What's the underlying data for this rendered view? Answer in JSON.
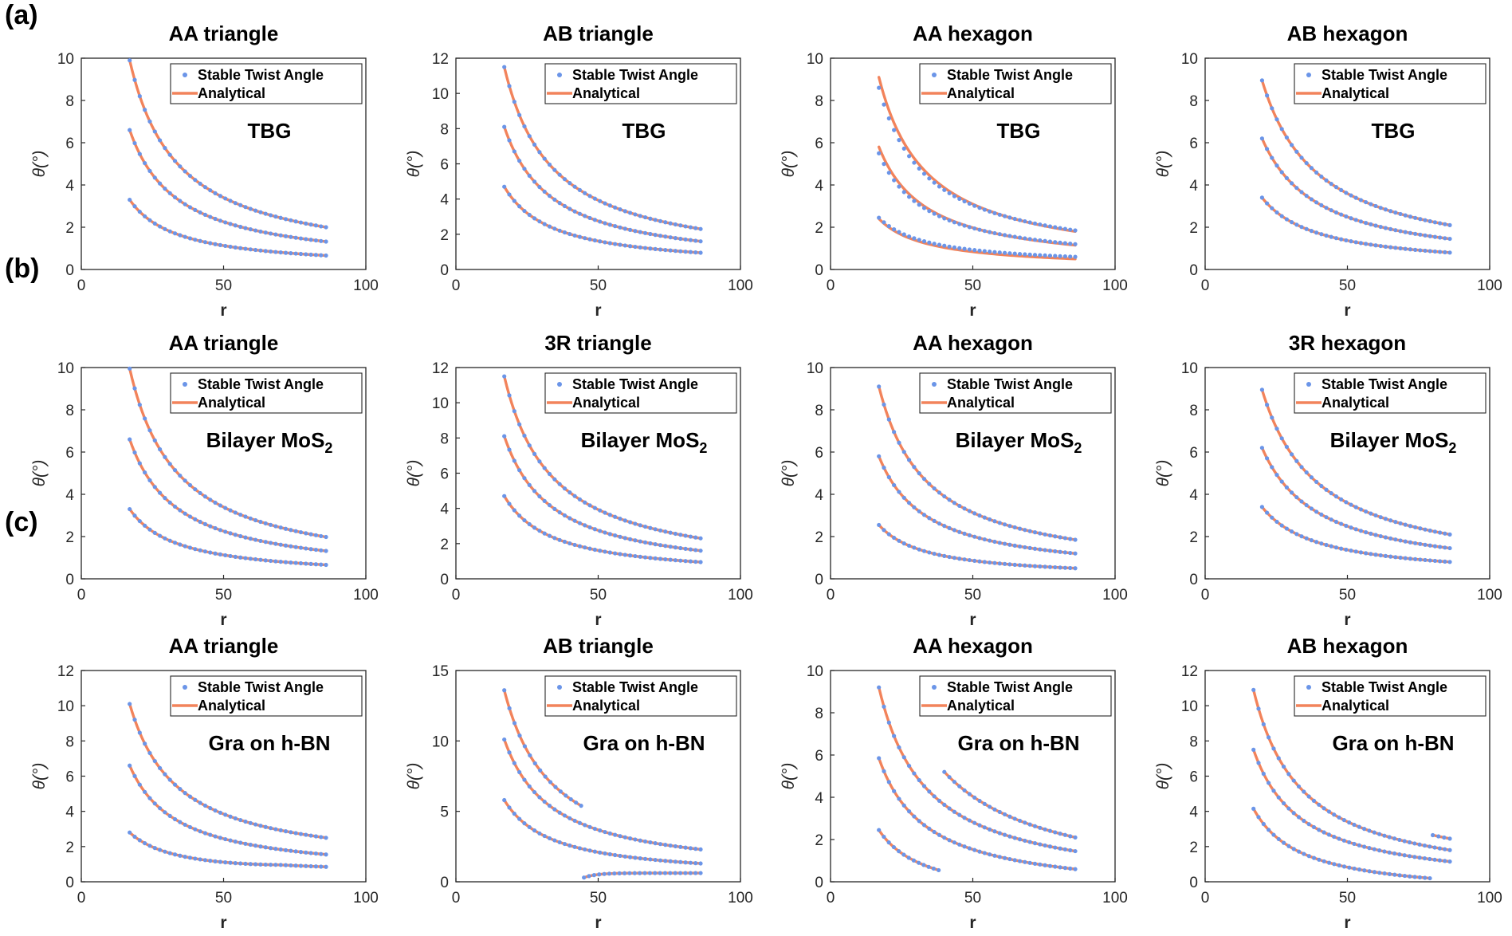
{
  "row_labels": [
    "(a)",
    "(b)",
    "(c)"
  ],
  "legend": {
    "points": "Stable Twist Angle",
    "line": "Analytical"
  },
  "colors": {
    "points": "#6b95e8",
    "line": "#f2835b",
    "axis": "#262626"
  },
  "chart_data": [
    {
      "row": "(a)",
      "title": "AA triangle",
      "annotation": "TBG",
      "type": "scatter",
      "xlabel": "r",
      "ylabel": "θ(°)",
      "xlim": [
        0,
        100
      ],
      "ylim": [
        0,
        10
      ],
      "xticks": [
        0,
        50,
        100
      ],
      "yticks": [
        0,
        2,
        4,
        6,
        8,
        10
      ],
      "series": [
        {
          "x_range": [
            17,
            86
          ],
          "y_range": [
            9.9,
            2.0
          ]
        },
        {
          "x_range": [
            17,
            86
          ],
          "y_range": [
            6.6,
            1.32
          ]
        },
        {
          "x_range": [
            17,
            86
          ],
          "y_range": [
            3.3,
            0.66
          ]
        }
      ]
    },
    {
      "row": "(a)",
      "title": "AB triangle",
      "annotation": "TBG",
      "type": "scatter",
      "xlabel": "r",
      "ylabel": "θ(°)",
      "xlim": [
        0,
        100
      ],
      "ylim": [
        0,
        12
      ],
      "xticks": [
        0,
        50,
        100
      ],
      "yticks": [
        0,
        2,
        4,
        6,
        8,
        10,
        12
      ],
      "series": [
        {
          "x_range": [
            17,
            86
          ],
          "y_range": [
            11.5,
            2.3
          ]
        },
        {
          "x_range": [
            17,
            86
          ],
          "y_range": [
            8.1,
            1.6
          ]
        },
        {
          "x_range": [
            17,
            86
          ],
          "y_range": [
            4.7,
            0.95
          ]
        }
      ]
    },
    {
      "row": "(a)",
      "title": "AA hexagon",
      "annotation": "TBG",
      "type": "scatter",
      "xlabel": "r",
      "ylabel": "θ(°)",
      "xlim": [
        0,
        100
      ],
      "ylim": [
        0,
        10
      ],
      "xticks": [
        0,
        50,
        100
      ],
      "yticks": [
        0,
        2,
        4,
        6,
        8,
        10
      ],
      "series": [
        {
          "x_range": [
            17,
            86
          ],
          "y_range": [
            8.6,
            1.85
          ],
          "line_y_range": [
            9.1,
            1.8
          ]
        },
        {
          "x_range": [
            17,
            86
          ],
          "y_range": [
            5.5,
            1.2
          ],
          "line_y_range": [
            5.8,
            1.15
          ]
        },
        {
          "x_range": [
            17,
            86
          ],
          "y_range": [
            2.45,
            0.6
          ],
          "line_y_range": [
            2.4,
            0.5
          ]
        }
      ]
    },
    {
      "row": "(a)",
      "title": "AB hexagon",
      "annotation": "TBG",
      "type": "scatter",
      "xlabel": "r",
      "ylabel": "θ(°)",
      "xlim": [
        0,
        100
      ],
      "ylim": [
        0,
        10
      ],
      "xticks": [
        0,
        50,
        100
      ],
      "yticks": [
        0,
        2,
        4,
        6,
        8,
        10
      ],
      "series": [
        {
          "x_range": [
            20,
            86
          ],
          "y_range": [
            8.95,
            2.1
          ]
        },
        {
          "x_range": [
            20,
            86
          ],
          "y_range": [
            6.2,
            1.45
          ]
        },
        {
          "x_range": [
            20,
            86
          ],
          "y_range": [
            3.4,
            0.8
          ]
        }
      ]
    },
    {
      "row": "(b)",
      "title": "AA triangle",
      "annotation": "Bilayer MoS",
      "annotation_sub": "2",
      "type": "scatter",
      "xlabel": "r",
      "ylabel": "θ(°)",
      "xlim": [
        0,
        100
      ],
      "ylim": [
        0,
        10
      ],
      "xticks": [
        0,
        50,
        100
      ],
      "yticks": [
        0,
        2,
        4,
        6,
        8,
        10
      ],
      "series": [
        {
          "x_range": [
            17,
            86
          ],
          "y_range": [
            9.95,
            1.98
          ]
        },
        {
          "x_range": [
            17,
            86
          ],
          "y_range": [
            6.6,
            1.32
          ]
        },
        {
          "x_range": [
            17,
            86
          ],
          "y_range": [
            3.3,
            0.66
          ]
        }
      ]
    },
    {
      "row": "(b)",
      "title": "3R triangle",
      "annotation": "Bilayer MoS",
      "annotation_sub": "2",
      "type": "scatter",
      "xlabel": "r",
      "ylabel": "θ(°)",
      "xlim": [
        0,
        100
      ],
      "ylim": [
        0,
        12
      ],
      "xticks": [
        0,
        50,
        100
      ],
      "yticks": [
        0,
        2,
        4,
        6,
        8,
        10,
        12
      ],
      "series": [
        {
          "x_range": [
            17,
            86
          ],
          "y_range": [
            11.5,
            2.3
          ]
        },
        {
          "x_range": [
            17,
            86
          ],
          "y_range": [
            8.1,
            1.6
          ]
        },
        {
          "x_range": [
            17,
            86
          ],
          "y_range": [
            4.7,
            0.95
          ]
        }
      ]
    },
    {
      "row": "(b)",
      "title": "AA hexagon",
      "annotation": "Bilayer MoS",
      "annotation_sub": "2",
      "type": "scatter",
      "xlabel": "r",
      "ylabel": "θ(°)",
      "xlim": [
        0,
        100
      ],
      "ylim": [
        0,
        10
      ],
      "xticks": [
        0,
        50,
        100
      ],
      "yticks": [
        0,
        2,
        4,
        6,
        8,
        10
      ],
      "series": [
        {
          "x_range": [
            17,
            86
          ],
          "y_range": [
            9.1,
            1.85
          ]
        },
        {
          "x_range": [
            17,
            86
          ],
          "y_range": [
            5.8,
            1.2
          ]
        },
        {
          "x_range": [
            17,
            86
          ],
          "y_range": [
            2.55,
            0.5
          ]
        }
      ]
    },
    {
      "row": "(b)",
      "title": "3R hexagon",
      "annotation": "Bilayer MoS",
      "annotation_sub": "2",
      "type": "scatter",
      "xlabel": "r",
      "ylabel": "θ(°)",
      "xlim": [
        0,
        100
      ],
      "ylim": [
        0,
        10
      ],
      "xticks": [
        0,
        50,
        100
      ],
      "yticks": [
        0,
        2,
        4,
        6,
        8,
        10
      ],
      "series": [
        {
          "x_range": [
            20,
            86
          ],
          "y_range": [
            8.95,
            2.1
          ]
        },
        {
          "x_range": [
            20,
            86
          ],
          "y_range": [
            6.2,
            1.45
          ]
        },
        {
          "x_range": [
            20,
            86
          ],
          "y_range": [
            3.4,
            0.8
          ]
        }
      ]
    },
    {
      "row": "(c)",
      "title": "AA triangle",
      "annotation": "Gra on h-BN",
      "type": "scatter",
      "xlabel": "r",
      "ylabel": "θ(°)",
      "xlim": [
        0,
        100
      ],
      "ylim": [
        0,
        12
      ],
      "xticks": [
        0,
        50,
        100
      ],
      "yticks": [
        0,
        2,
        4,
        6,
        8,
        10,
        12
      ],
      "series": [
        {
          "x_range": [
            17,
            86
          ],
          "y_range": [
            10.1,
            2.5
          ]
        },
        {
          "x_range": [
            17,
            86
          ],
          "y_range": [
            6.6,
            1.55
          ]
        },
        {
          "x_range": [
            17,
            86
          ],
          "y_range": [
            2.8,
            0.85
          ],
          "shape": "dip",
          "min": 0.85
        }
      ]
    },
    {
      "row": "(c)",
      "title": "AB triangle",
      "annotation": "Gra on h-BN",
      "type": "scatter",
      "xlabel": "r",
      "ylabel": "θ(°)",
      "xlim": [
        0,
        100
      ],
      "ylim": [
        0,
        15
      ],
      "xticks": [
        0,
        50,
        100
      ],
      "yticks": [
        0,
        5,
        10,
        15
      ],
      "series": [
        {
          "x_range": [
            17,
            44
          ],
          "y_range": [
            13.6,
            5.4
          ]
        },
        {
          "x_range": [
            17,
            86
          ],
          "y_range": [
            10.1,
            2.3
          ]
        },
        {
          "x_range": [
            17,
            86
          ],
          "y_range": [
            5.8,
            1.3
          ]
        },
        {
          "x_range": [
            45,
            86
          ],
          "y_range": [
            0.3,
            0.6
          ],
          "shape": "rise",
          "plateau": 0.62
        }
      ]
    },
    {
      "row": "(c)",
      "title": "AA hexagon",
      "annotation": "Gra on h-BN",
      "type": "scatter",
      "xlabel": "r",
      "ylabel": "θ(°)",
      "xlim": [
        0,
        100
      ],
      "ylim": [
        0,
        10
      ],
      "xticks": [
        0,
        50,
        100
      ],
      "yticks": [
        0,
        2,
        4,
        6,
        8,
        10
      ],
      "series": [
        {
          "x_range": [
            17,
            86
          ],
          "y_range": [
            9.2,
            1.45
          ]
        },
        {
          "x_range": [
            17,
            86
          ],
          "y_range": [
            5.85,
            0.6
          ]
        },
        {
          "x_range": [
            17,
            38
          ],
          "y_range": [
            2.45,
            0.55
          ]
        },
        {
          "x_range": [
            40,
            86
          ],
          "y_range": [
            5.2,
            2.1
          ]
        }
      ]
    },
    {
      "row": "(c)",
      "title": "AB hexagon",
      "annotation": "Gra on h-BN",
      "type": "scatter",
      "xlabel": "r",
      "ylabel": "θ(°)",
      "xlim": [
        0,
        100
      ],
      "ylim": [
        0,
        12
      ],
      "xticks": [
        0,
        50,
        100
      ],
      "yticks": [
        0,
        2,
        4,
        6,
        8,
        10,
        12
      ],
      "series": [
        {
          "x_range": [
            17,
            86
          ],
          "y_range": [
            10.9,
            1.8
          ]
        },
        {
          "x_range": [
            17,
            86
          ],
          "y_range": [
            7.5,
            1.15
          ]
        },
        {
          "x_range": [
            17,
            79
          ],
          "y_range": [
            4.15,
            0.2
          ]
        },
        {
          "x_range": [
            80,
            86
          ],
          "y_range": [
            2.65,
            2.45
          ]
        }
      ]
    }
  ]
}
